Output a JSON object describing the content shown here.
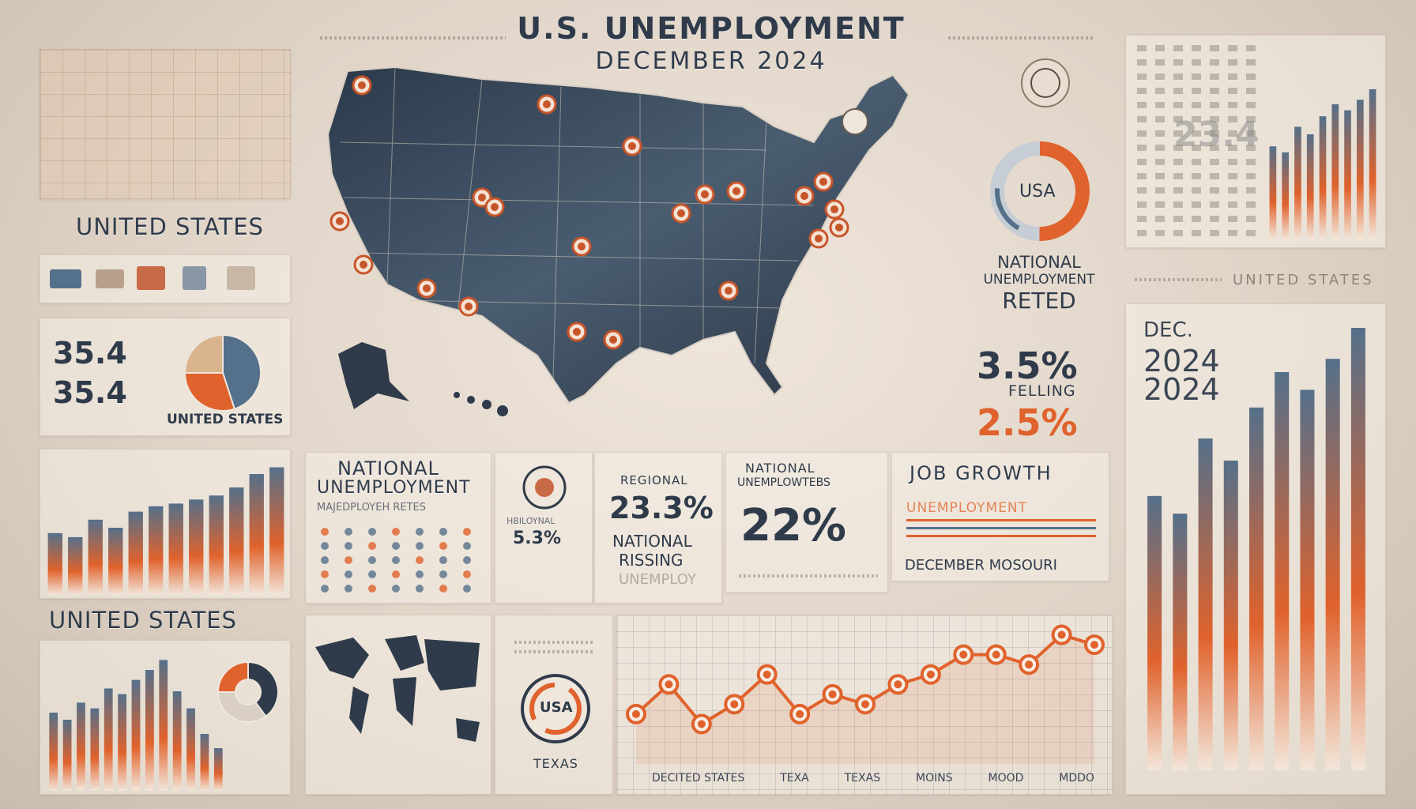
{
  "title": {
    "line1": "U.S. UNEMPLOYMENT",
    "line2": "DECEMBER 2024"
  },
  "left": {
    "label_top": "UNITED STATES",
    "stat_a": "35.4",
    "stat_b": "35.4",
    "pie_label": "UNITED STATES",
    "bars_label": "UNITED STATES"
  },
  "center": {
    "national_title_1": "NATIONAL",
    "national_title_2": "UNEMPLOYMENT",
    "national_sub": "MAJEDPLOYEH RETES",
    "small_rate_label": "HBILOYNAL",
    "small_rate_value": "5.3%",
    "regional_label": "REGIONAL",
    "regional_value": "23.3%",
    "regional_sub1": "NATIONAL",
    "regional_sub2": "RISSING",
    "regional_sub3": "UNEMPLOY",
    "national2_label1": "NATIONAL",
    "national2_label2": "UNEMPLOWTEBS",
    "national2_value": "22%",
    "job_growth": "JOB GROWTH",
    "job_sub": "UNEMPLOYMENT",
    "job_footer": "DECEMBER MOSOURI",
    "usa_badge_bottom": "USA",
    "texas_caption": "TEXAS",
    "line_axis": [
      "DECITED STATES",
      "TEXA",
      "TEXAS",
      "MOINS",
      "MOOD",
      "MDDO"
    ]
  },
  "right": {
    "usa_ring": "USA",
    "rate_title_1": "NATIONAL",
    "rate_title_2": "UNEMPLOYMENT",
    "rate_title_3": "RETED",
    "rate_value_1": "3.5%",
    "rate_falling": "FELLING",
    "rate_value_2": "2.5%",
    "states_label": "UNITED STATES",
    "dec_label": "DEC.",
    "year_1": "2024",
    "year_2": "2024",
    "faded_number": "23.4"
  },
  "colors": {
    "navy": "#2f3b4a",
    "orange": "#e0622c",
    "steel": "#55708a",
    "cream": "#efe6dc"
  },
  "chart_data": [
    {
      "type": "line",
      "x": [
        1,
        2,
        3,
        4,
        5,
        6,
        7,
        8,
        9,
        10,
        11,
        12,
        13,
        14,
        15
      ],
      "values": [
        2,
        5,
        1,
        3,
        6,
        2,
        4,
        3,
        5,
        6,
        8,
        8,
        7,
        10,
        9
      ],
      "ylim": [
        0,
        11
      ]
    },
    {
      "type": "bar",
      "values": [
        46,
        43,
        56,
        50,
        62,
        66,
        68,
        71,
        74,
        80,
        90,
        95
      ],
      "ylim": [
        0,
        100
      ]
    },
    {
      "type": "bar",
      "values": [
        55,
        50,
        62,
        58,
        72,
        68,
        78,
        85,
        92,
        70,
        58,
        40,
        30
      ],
      "ylim": [
        0,
        100
      ]
    },
    {
      "type": "bar",
      "values": [
        62,
        58,
        75,
        70,
        82,
        90,
        86,
        93,
        100
      ],
      "ylim": [
        0,
        100
      ]
    },
    {
      "type": "pie",
      "values": [
        45,
        30,
        25
      ]
    },
    {
      "type": "pie",
      "values": [
        40,
        35,
        25
      ]
    }
  ]
}
